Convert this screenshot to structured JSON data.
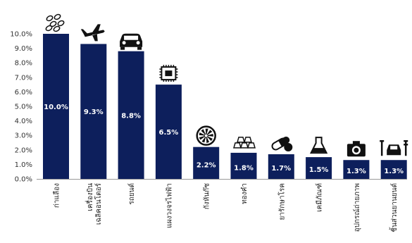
{
  "chart_data": {
    "type": "bar",
    "categories": [
      "ก่าแลือง",
      "เครื่องบิน เฉลิคอนโตอร์",
      "รถยนต์",
      "แผงวงจรไฟฟ้า",
      "กังหันก๊ซ",
      "ทองคำ",
      "ยารักษาโรค",
      "เคมีภัณฑ์",
      "อุปกรณ์ถ่ายภาพ",
      "ชิ้นส่วนยานยนต์"
    ],
    "values": [
      10.0,
      9.3,
      8.8,
      6.5,
      2.2,
      1.8,
      1.7,
      1.5,
      1.3,
      1.3
    ],
    "value_labels": [
      "10.0%",
      "9.3%",
      "8.8%",
      "6.5%",
      "2.2%",
      "1.8%",
      "1.7%",
      "1.5%",
      "1.3%",
      "1.3%"
    ],
    "icons": [
      "soybean-icon",
      "airplane-icon",
      "car-icon",
      "chip-icon",
      "turbine-icon",
      "gold-bars-icon",
      "pill-icon",
      "flask-icon",
      "camera-icon",
      "car-repair-icon"
    ],
    "yticks": [
      "0.0%",
      "1.0%",
      "2.0%",
      "3.0%",
      "4.0%",
      "5.0%",
      "6.0%",
      "7.0%",
      "8.0%",
      "9.0%",
      "10.0%"
    ],
    "ylim": [
      0,
      10
    ],
    "bar_color": "#0d1f5c",
    "grid": false,
    "legend": "none"
  }
}
